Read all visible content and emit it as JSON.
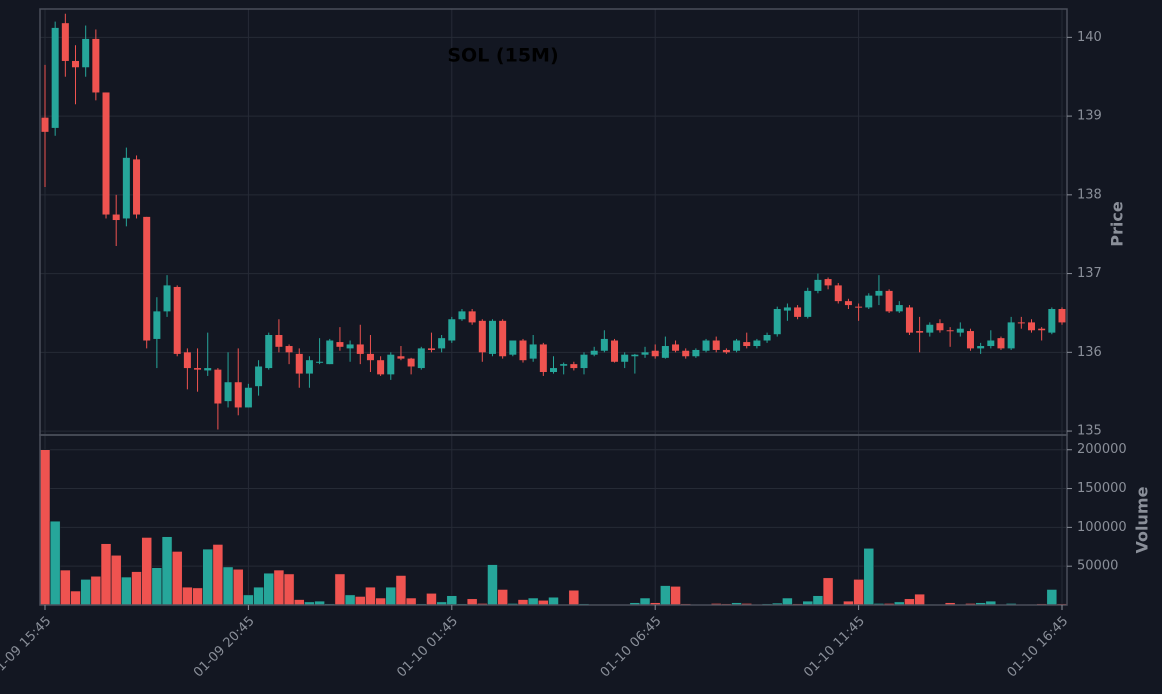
{
  "chart_data": {
    "type": "candlestick",
    "title": "SOL (15M)",
    "ylabel": "Price",
    "y2label": "Volume",
    "up_color": "#26a69a",
    "down_color": "#ef5350",
    "grid": true,
    "x": [
      "01-09 15:45",
      "01-09 16:00",
      "01-09 16:15",
      "01-09 16:30",
      "01-09 16:45",
      "01-09 17:00",
      "01-09 17:15",
      "01-09 17:30",
      "01-09 17:45",
      "01-09 18:00",
      "01-09 18:15",
      "01-09 18:30",
      "01-09 18:45",
      "01-09 19:00",
      "01-09 19:15",
      "01-09 19:30",
      "01-09 19:45",
      "01-09 20:00",
      "01-09 20:15",
      "01-09 20:30",
      "01-09 20:45",
      "01-09 21:00",
      "01-09 21:15",
      "01-09 21:30",
      "01-09 21:45",
      "01-09 22:00",
      "01-09 22:15",
      "01-09 22:30",
      "01-09 22:45",
      "01-09 23:00",
      "01-09 23:15",
      "01-09 23:30",
      "01-09 23:45",
      "01-10 00:00",
      "01-10 00:15",
      "01-10 00:30",
      "01-10 00:45",
      "01-10 01:00",
      "01-10 01:15",
      "01-10 01:30",
      "01-10 01:45",
      "01-10 02:00",
      "01-10 02:15",
      "01-10 02:30",
      "01-10 02:45",
      "01-10 03:00",
      "01-10 03:15",
      "01-10 03:30",
      "01-10 03:45",
      "01-10 04:00",
      "01-10 04:15",
      "01-10 04:30",
      "01-10 04:45",
      "01-10 05:00",
      "01-10 05:15",
      "01-10 05:30",
      "01-10 05:45",
      "01-10 06:00",
      "01-10 06:15",
      "01-10 06:30",
      "01-10 06:45",
      "01-10 07:00",
      "01-10 07:15",
      "01-10 07:30",
      "01-10 07:45",
      "01-10 08:00",
      "01-10 08:15",
      "01-10 08:30",
      "01-10 08:45",
      "01-10 09:00",
      "01-10 09:15",
      "01-10 09:30",
      "01-10 09:45",
      "01-10 10:00",
      "01-10 10:15",
      "01-10 10:30",
      "01-10 10:45",
      "01-10 11:00",
      "01-10 11:15",
      "01-10 11:30",
      "01-10 11:45",
      "01-10 12:00",
      "01-10 12:15",
      "01-10 12:30",
      "01-10 12:45",
      "01-10 13:00",
      "01-10 13:15",
      "01-10 13:30",
      "01-10 13:45",
      "01-10 14:00",
      "01-10 14:15",
      "01-10 14:30",
      "01-10 14:45",
      "01-10 15:00",
      "01-10 15:15",
      "01-10 15:30",
      "01-10 15:45",
      "01-10 16:00",
      "01-10 16:15",
      "01-10 16:30",
      "01-10 16:45"
    ],
    "open": [
      138.98,
      138.85,
      140.18,
      139.7,
      139.62,
      139.98,
      139.3,
      137.75,
      137.7,
      138.45,
      137.72,
      136.17,
      136.52,
      136.83,
      136.0,
      135.8,
      135.77,
      135.78,
      135.38,
      135.62,
      135.3,
      135.57,
      135.8,
      136.22,
      136.08,
      135.98,
      135.73,
      135.87,
      135.85,
      136.13,
      136.05,
      136.1,
      135.98,
      135.9,
      135.72,
      135.95,
      135.92,
      135.8,
      136.05,
      136.05,
      136.15,
      136.42,
      136.52,
      136.4,
      135.98,
      136.4,
      135.97,
      136.15,
      135.92,
      136.1,
      135.75,
      135.83,
      135.85,
      135.8,
      135.97,
      136.02,
      136.15,
      135.88,
      135.95,
      135.97,
      136.02,
      135.93,
      136.1,
      136.02,
      135.95,
      136.02,
      136.15,
      136.03,
      136.02,
      136.13,
      136.08,
      136.15,
      136.23,
      136.53,
      136.57,
      136.45,
      136.78,
      136.93,
      136.85,
      136.65,
      136.58,
      136.57,
      136.72,
      136.78,
      136.52,
      136.57,
      136.27,
      136.25,
      136.37,
      136.28,
      136.25,
      136.27,
      136.05,
      136.08,
      136.18,
      136.05,
      136.38,
      136.38,
      136.3,
      136.25,
      136.55
    ],
    "high": [
      139.65,
      140.2,
      140.3,
      139.9,
      140.15,
      140.1,
      139.3,
      138.0,
      138.6,
      138.5,
      137.72,
      136.7,
      136.98,
      136.85,
      136.05,
      136.05,
      136.25,
      135.8,
      136.0,
      136.05,
      135.6,
      135.9,
      136.25,
      136.42,
      136.1,
      136.05,
      135.95,
      136.18,
      136.17,
      136.32,
      136.15,
      136.35,
      136.22,
      135.95,
      136.0,
      136.08,
      135.93,
      136.07,
      136.25,
      136.22,
      136.45,
      136.55,
      136.55,
      136.42,
      136.42,
      136.42,
      136.15,
      136.17,
      136.22,
      136.12,
      135.95,
      135.87,
      135.88,
      136.0,
      136.07,
      136.28,
      136.17,
      136.0,
      135.98,
      136.07,
      136.1,
      136.2,
      136.15,
      136.05,
      136.05,
      136.17,
      136.2,
      136.05,
      136.17,
      136.25,
      136.17,
      136.25,
      136.58,
      136.62,
      136.6,
      136.82,
      137.0,
      136.95,
      136.88,
      136.68,
      136.62,
      136.75,
      136.98,
      136.8,
      136.65,
      136.6,
      136.45,
      136.38,
      136.42,
      136.32,
      136.38,
      136.3,
      136.12,
      136.28,
      136.2,
      136.45,
      136.45,
      136.42,
      136.32,
      136.57,
      136.57
    ],
    "low": [
      138.1,
      138.75,
      139.5,
      139.15,
      139.5,
      139.2,
      137.7,
      137.35,
      137.6,
      137.7,
      136.05,
      135.8,
      136.45,
      135.95,
      135.53,
      135.5,
      135.7,
      135.02,
      135.3,
      135.2,
      135.3,
      135.45,
      135.78,
      136.0,
      135.85,
      135.55,
      135.55,
      135.85,
      135.85,
      136.02,
      135.88,
      135.85,
      135.75,
      135.7,
      135.65,
      135.9,
      135.72,
      135.78,
      136.0,
      136.0,
      136.12,
      136.4,
      136.35,
      135.88,
      135.95,
      135.92,
      135.95,
      135.87,
      135.88,
      135.7,
      135.73,
      135.72,
      135.77,
      135.72,
      135.95,
      136.0,
      135.87,
      135.8,
      135.73,
      135.93,
      135.92,
      135.92,
      136.0,
      135.92,
      135.93,
      136.0,
      136.0,
      135.98,
      136.0,
      136.05,
      136.05,
      136.12,
      136.2,
      136.4,
      136.42,
      136.43,
      136.75,
      136.8,
      136.62,
      136.55,
      136.4,
      136.55,
      136.6,
      136.5,
      136.5,
      136.22,
      136.0,
      136.2,
      136.25,
      136.07,
      136.2,
      136.02,
      135.98,
      136.05,
      136.03,
      136.03,
      136.3,
      136.25,
      136.15,
      136.23,
      136.35
    ],
    "close": [
      138.8,
      140.12,
      139.7,
      139.62,
      139.98,
      139.3,
      137.75,
      137.68,
      138.47,
      137.75,
      136.15,
      136.52,
      136.85,
      135.98,
      135.8,
      135.78,
      135.8,
      135.35,
      135.62,
      135.3,
      135.55,
      135.82,
      136.22,
      136.07,
      136.0,
      135.73,
      135.9,
      135.88,
      136.15,
      136.07,
      136.1,
      135.98,
      135.9,
      135.72,
      135.97,
      135.92,
      135.82,
      136.05,
      136.03,
      136.18,
      136.42,
      136.52,
      136.38,
      136.0,
      136.4,
      135.95,
      136.15,
      135.9,
      136.1,
      135.75,
      135.8,
      135.85,
      135.8,
      135.97,
      136.02,
      136.17,
      135.88,
      135.97,
      135.97,
      136.0,
      135.95,
      136.08,
      136.02,
      135.95,
      136.03,
      136.15,
      136.03,
      136.0,
      136.15,
      136.08,
      136.15,
      136.22,
      136.55,
      136.57,
      136.45,
      136.78,
      136.92,
      136.85,
      136.65,
      136.6,
      136.57,
      136.72,
      136.78,
      136.52,
      136.6,
      136.25,
      136.25,
      136.35,
      136.28,
      136.27,
      136.3,
      136.05,
      136.08,
      136.15,
      136.05,
      136.38,
      136.37,
      136.28,
      136.28,
      136.55,
      136.38
    ],
    "volume": [
      200000,
      108000,
      45000,
      18000,
      33000,
      37000,
      79000,
      64000,
      36000,
      43000,
      87000,
      48000,
      88000,
      69000,
      23000,
      22000,
      72000,
      78000,
      49000,
      46000,
      13000,
      23000,
      41000,
      45000,
      40000,
      7000,
      4000,
      5000,
      1500,
      40000,
      13000,
      11000,
      23000,
      9000,
      23000,
      38000,
      9000,
      1500,
      15000,
      4000,
      12000,
      1500,
      8000,
      2000,
      52000,
      20000,
      2000,
      7000,
      9000,
      6000,
      10000,
      1000,
      19000,
      1500,
      1000,
      500,
      500,
      500,
      3000,
      9000,
      3000,
      25000,
      24000,
      1500,
      500,
      500,
      2000,
      1500,
      3000,
      2000,
      500,
      1500,
      2500,
      9000,
      1500,
      5000,
      12000,
      35000,
      500,
      5000,
      33000,
      73000,
      2000,
      2000,
      4000,
      8000,
      14000,
      1000,
      500,
      3000,
      500,
      2000,
      3000,
      5000,
      500,
      2000,
      500,
      1000,
      1500,
      20000,
      1500
    ],
    "xticks": [
      "01-09 15:45",
      "01-09 20:45",
      "01-10 01:45",
      "01-10 06:45",
      "01-10 11:45",
      "01-10 16:45"
    ],
    "ylim": [
      134.95,
      140.36
    ],
    "yticks": [
      135,
      136,
      137,
      138,
      139,
      140
    ],
    "y2lim": [
      0,
      219000
    ],
    "y2ticks": [
      50000,
      100000,
      150000,
      200000
    ]
  }
}
